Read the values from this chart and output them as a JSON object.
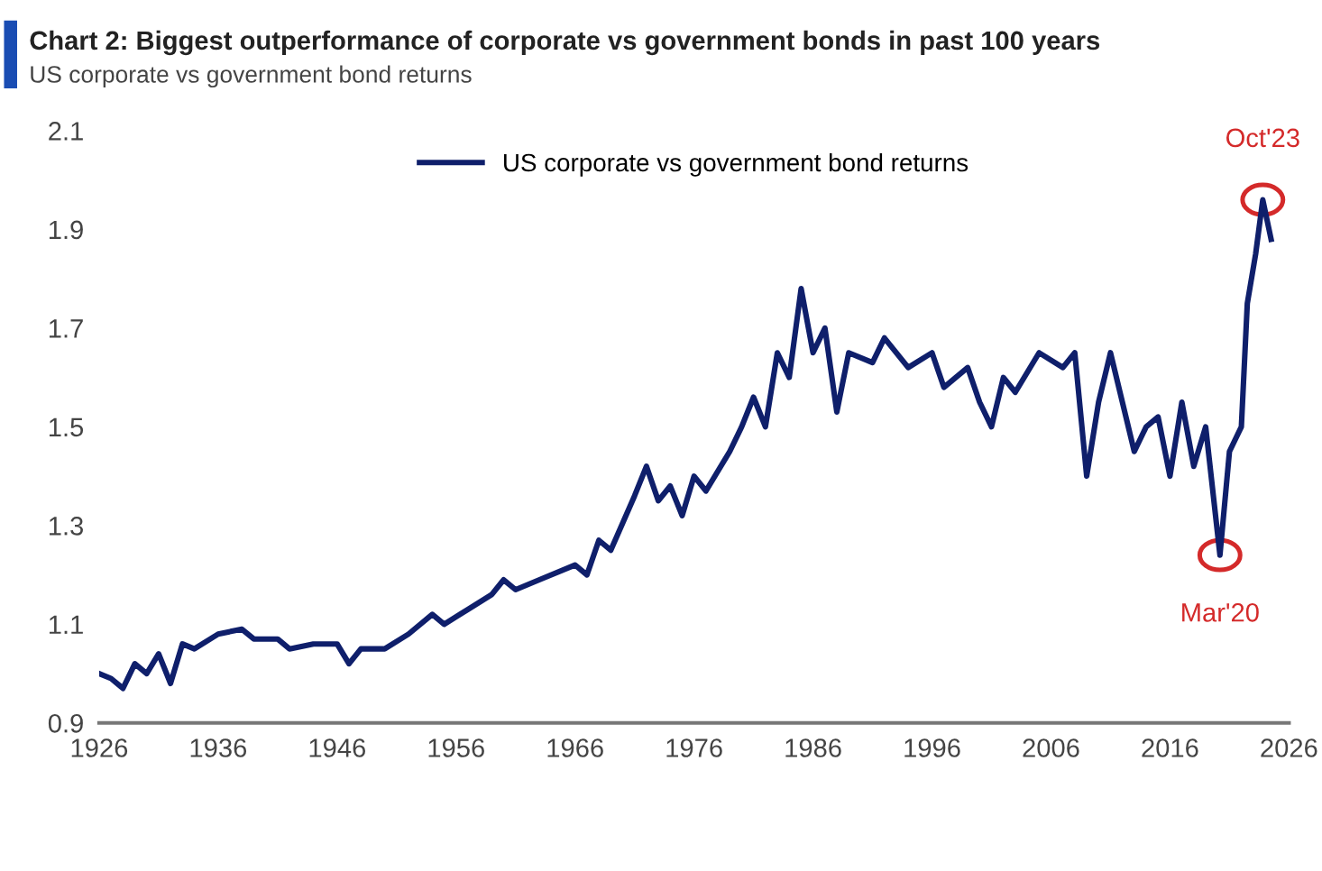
{
  "chart_data": {
    "type": "line",
    "title": "Chart 2: Biggest outperformance of corporate vs government bonds in past 100 years",
    "subtitle": "US corporate vs government bond returns",
    "x": [
      1926,
      1927,
      1928,
      1929,
      1930,
      1931,
      1932,
      1933,
      1934,
      1936,
      1938,
      1939,
      1941,
      1942,
      1944,
      1946,
      1947,
      1948,
      1950,
      1952,
      1954,
      1955,
      1957,
      1959,
      1960,
      1961,
      1963,
      1966,
      1967,
      1968,
      1969,
      1971,
      1972,
      1973,
      1974,
      1975,
      1976,
      1977,
      1979,
      1980,
      1981,
      1982,
      1983,
      1984,
      1985,
      1986,
      1987,
      1988,
      1989,
      1991,
      1992,
      1994,
      1996,
      1997,
      1999,
      2000,
      2001,
      2002,
      2003,
      2005,
      2007,
      2008,
      2009,
      2010,
      2011,
      2012,
      2013,
      2014,
      2015,
      2016,
      2017,
      2018,
      2019,
      2020.2,
      2021,
      2022,
      2022.5,
      2023.2,
      2023.8,
      2024.5
    ],
    "series": [
      {
        "name": "US corporate vs government bond returns",
        "color": "#0f1f6b",
        "values": [
          1.0,
          0.99,
          0.97,
          1.02,
          1.0,
          1.04,
          0.98,
          1.06,
          1.05,
          1.08,
          1.09,
          1.07,
          1.07,
          1.05,
          1.06,
          1.06,
          1.02,
          1.05,
          1.05,
          1.08,
          1.12,
          1.1,
          1.13,
          1.16,
          1.19,
          1.17,
          1.19,
          1.22,
          1.2,
          1.27,
          1.25,
          1.36,
          1.42,
          1.35,
          1.38,
          1.32,
          1.4,
          1.37,
          1.45,
          1.5,
          1.56,
          1.5,
          1.65,
          1.6,
          1.78,
          1.65,
          1.7,
          1.53,
          1.65,
          1.63,
          1.68,
          1.62,
          1.65,
          1.58,
          1.62,
          1.55,
          1.5,
          1.6,
          1.57,
          1.65,
          1.62,
          1.65,
          1.4,
          1.55,
          1.65,
          1.55,
          1.45,
          1.5,
          1.52,
          1.4,
          1.55,
          1.42,
          1.5,
          1.24,
          1.45,
          1.5,
          1.75,
          1.85,
          1.96,
          1.88
        ]
      }
    ],
    "annotations": [
      {
        "text": "Oct'23",
        "x": 2023.8,
        "y": 1.96
      },
      {
        "text": "Mar'20",
        "x": 2020.2,
        "y": 1.24
      }
    ],
    "xlim": [
      1926,
      2026
    ],
    "xticks": [
      1926,
      1936,
      1946,
      1956,
      1966,
      1976,
      1986,
      1996,
      2006,
      2016,
      2026
    ],
    "ylim": [
      0.9,
      2.1
    ],
    "yticks": [
      0.9,
      1.1,
      1.3,
      1.5,
      1.7,
      1.9,
      2.1
    ],
    "grid": false,
    "legend": "top",
    "marker": "none",
    "line_style": "solid"
  }
}
